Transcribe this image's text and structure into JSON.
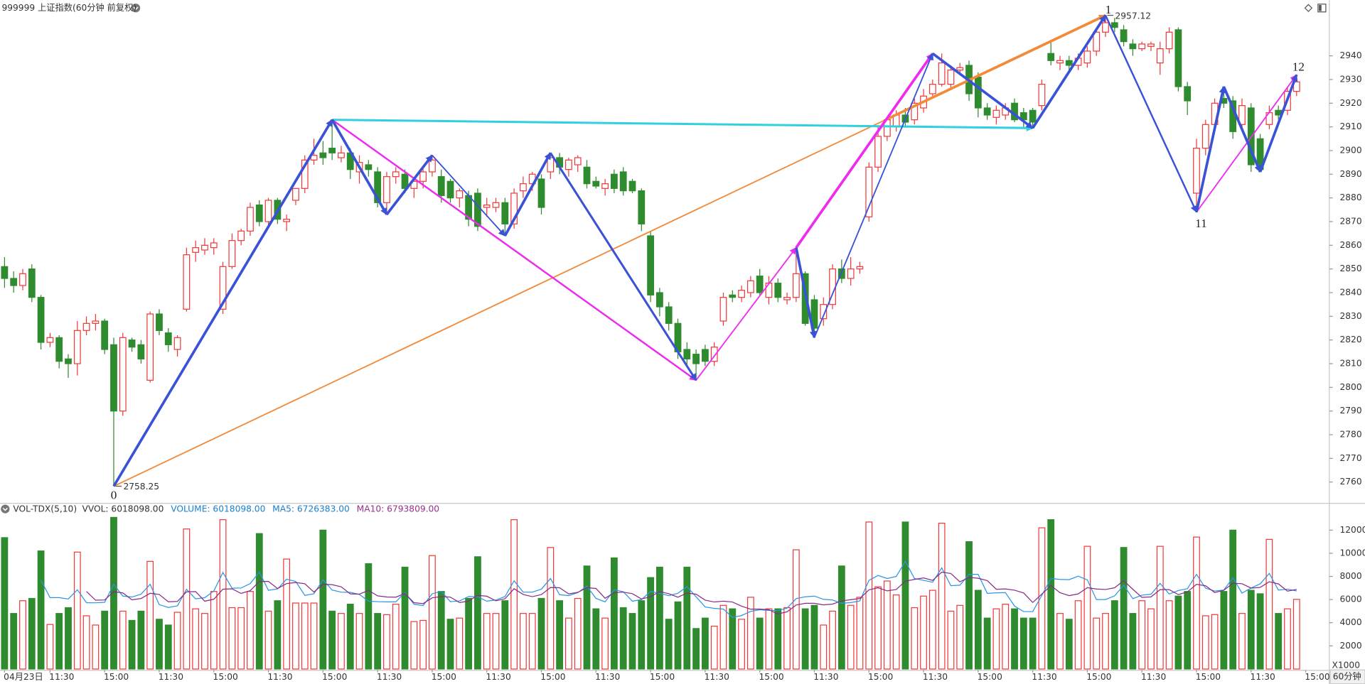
{
  "chart_data": [
    {
      "type": "candlestick",
      "title": "999999 上证指数(60分钟 前复权)",
      "xlim": [
        -0.5,
        145.5
      ],
      "ylim": [
        2751.2,
        2963.5
      ],
      "yticks": [
        2760,
        2770,
        2780,
        2790,
        2800,
        2810,
        2820,
        2830,
        2840,
        2850,
        2860,
        2870,
        2880,
        2890,
        2900,
        2910,
        2920,
        2930,
        2940
      ],
      "xticks": [
        {
          "value": 0,
          "label": "04月23日"
        },
        {
          "value": 5,
          "label": "11:30"
        },
        {
          "value": 11,
          "label": "15:00"
        },
        {
          "value": 17,
          "label": "11:30"
        },
        {
          "value": 23,
          "label": "15:00"
        },
        {
          "value": 29,
          "label": "11:30"
        },
        {
          "value": 35,
          "label": "15:00"
        },
        {
          "value": 41,
          "label": "11:30"
        },
        {
          "value": 47,
          "label": "15:00"
        },
        {
          "value": 53,
          "label": "11:30"
        },
        {
          "value": 59,
          "label": "15:00"
        },
        {
          "value": 65,
          "label": "11:30"
        },
        {
          "value": 71,
          "label": "15:00"
        },
        {
          "value": 77,
          "label": "11:30"
        },
        {
          "value": 83,
          "label": "15:00"
        },
        {
          "value": 89,
          "label": "11:30"
        },
        {
          "value": 95,
          "label": "15:00"
        },
        {
          "value": 101,
          "label": "11:30"
        },
        {
          "value": 107,
          "label": "15:00"
        },
        {
          "value": 113,
          "label": "11:30"
        },
        {
          "value": 119,
          "label": "15:00"
        },
        {
          "value": 125,
          "label": "11:30"
        },
        {
          "value": 131,
          "label": "15:00"
        },
        {
          "value": 137,
          "label": "11:30"
        },
        {
          "value": 143,
          "label": "15:00"
        }
      ],
      "colors": {
        "up": "#f03a3a",
        "down": "#2e8b2e"
      },
      "open": [
        2851,
        2846,
        2843,
        2850,
        2838,
        2819,
        2821,
        2812,
        2810,
        2824,
        2827,
        2828,
        2818,
        2790,
        2820,
        2818,
        2803,
        2831,
        2823,
        2816,
        2833,
        2857,
        2858,
        2859,
        2833,
        2851,
        2862,
        2866,
        2877,
        2870,
        2879,
        2870,
        2879,
        2884,
        2896,
        2899,
        2901,
        2897,
        2899,
        2891,
        2894,
        2891,
        2878,
        2889,
        2890,
        2884,
        2887,
        2891,
        2889,
        2887,
        2880,
        2881,
        2882,
        2876,
        2876,
        2878,
        2869,
        2883,
        2886,
        2888,
        2891,
        2897,
        2892,
        2894,
        2893,
        2887,
        2884,
        2890,
        2891,
        2887,
        2883,
        2864,
        2840,
        2834,
        2827,
        2816,
        2814,
        2816,
        2811,
        2828,
        2839,
        2838,
        2840,
        2847,
        2838,
        2844,
        2837,
        2838,
        2848,
        2837,
        2829,
        2835,
        2850,
        2846,
        2850,
        2872,
        2893,
        2906,
        2910,
        2915,
        2913,
        2918,
        2924,
        2928,
        2928,
        2934,
        2936,
        2931,
        2918,
        2914,
        2915,
        2920,
        2916,
        2917,
        2919,
        2941,
        2937,
        2938,
        2936,
        2937,
        2942,
        2950,
        2954,
        2951,
        2945,
        2943,
        2944,
        2937,
        2943,
        2951,
        2927,
        2882,
        2901,
        2911,
        2922,
        2921,
        2911,
        2918,
        2905,
        2911,
        2917,
        2917,
        2925
      ],
      "high": [
        2855,
        2849,
        2850,
        2852,
        2839,
        2823,
        2822,
        2814,
        2828,
        2830,
        2831,
        2829,
        2821,
        2823,
        2821,
        2820,
        2832,
        2833,
        2825,
        2822,
        2859,
        2862,
        2863,
        2863,
        2853,
        2865,
        2867,
        2878,
        2879,
        2880,
        2880,
        2873,
        2884,
        2898,
        2905,
        2904,
        2913,
        2902,
        2901,
        2898,
        2896,
        2893,
        2891,
        2893,
        2892,
        2888,
        2893,
        2898,
        2892,
        2888,
        2884,
        2883,
        2884,
        2880,
        2880,
        2880,
        2884,
        2889,
        2891,
        2890,
        2899,
        2899,
        2897,
        2898,
        2896,
        2889,
        2888,
        2892,
        2893,
        2888,
        2884,
        2866,
        2842,
        2836,
        2829,
        2819,
        2816,
        2818,
        2819,
        2840,
        2841,
        2843,
        2847,
        2850,
        2847,
        2846,
        2840,
        2859,
        2849,
        2839,
        2838,
        2852,
        2854,
        2855,
        2853,
        2895,
        2910,
        2914,
        2917,
        2918,
        2922,
        2926,
        2930,
        2941,
        2936,
        2937,
        2938,
        2933,
        2920,
        2919,
        2920,
        2922,
        2918,
        2918,
        2930,
        2946,
        2940,
        2940,
        2941,
        2944,
        2951,
        2957.12,
        2956,
        2953,
        2947,
        2946,
        2946,
        2946,
        2952,
        2952,
        2929,
        2905,
        2913,
        2922,
        2927,
        2923,
        2922,
        2920,
        2907,
        2919,
        2919,
        2927,
        2932
      ],
      "low": [
        2842,
        2840,
        2841,
        2836,
        2816,
        2817,
        2808,
        2804,
        2805,
        2822,
        2824,
        2814,
        2758.25,
        2788,
        2815,
        2810,
        2802,
        2822,
        2815,
        2813,
        2832,
        2853,
        2856,
        2856,
        2831,
        2850,
        2860,
        2864,
        2868,
        2868,
        2869,
        2866,
        2877,
        2882,
        2894,
        2894,
        2896,
        2895,
        2888,
        2886,
        2889,
        2876,
        2873,
        2886,
        2882,
        2880,
        2884,
        2889,
        2878,
        2878,
        2876,
        2868,
        2866,
        2872,
        2874,
        2864,
        2867,
        2880,
        2883,
        2873,
        2888,
        2890,
        2889,
        2891,
        2884,
        2884,
        2881,
        2882,
        2881,
        2882,
        2866,
        2836,
        2830,
        2824,
        2812,
        2809,
        2803,
        2809,
        2809,
        2826,
        2836,
        2836,
        2838,
        2839,
        2835,
        2836,
        2835,
        2836,
        2826,
        2821,
        2826,
        2833,
        2844,
        2843,
        2848,
        2870,
        2891,
        2904,
        2908,
        2910,
        2911,
        2916,
        2922,
        2927,
        2926,
        2932,
        2921,
        2914,
        2913,
        2911,
        2913,
        2912,
        2910,
        2909.5,
        2917,
        2936,
        2934,
        2933,
        2934,
        2935,
        2940,
        2948,
        2950,
        2944,
        2940,
        2942,
        2942,
        2932,
        2941,
        2925,
        2915,
        2874,
        2898,
        2909,
        2918,
        2905,
        2909,
        2891,
        2891,
        2909,
        2913,
        2915,
        2923
      ],
      "close": [
        2846,
        2843,
        2848,
        2838,
        2819,
        2821,
        2811,
        2810,
        2824,
        2827,
        2828,
        2816,
        2790,
        2821,
        2817,
        2812,
        2831,
        2824,
        2818,
        2821,
        2856,
        2859,
        2860,
        2861,
        2851,
        2862,
        2866,
        2876,
        2870,
        2879,
        2871,
        2871,
        2884,
        2896,
        2898,
        2897,
        2899,
        2899,
        2892,
        2895,
        2892,
        2878,
        2889,
        2891,
        2884,
        2887,
        2891,
        2896,
        2881,
        2880,
        2883,
        2871,
        2868,
        2877,
        2878,
        2869,
        2882,
        2886,
        2890,
        2876,
        2897,
        2893,
        2896,
        2897,
        2886,
        2885,
        2886,
        2884,
        2883,
        2883,
        2869,
        2839,
        2834,
        2827,
        2815,
        2812,
        2810,
        2811,
        2817,
        2838,
        2838,
        2841,
        2845,
        2840,
        2844,
        2838,
        2838,
        2848,
        2827,
        2825,
        2835,
        2850,
        2846,
        2850,
        2851,
        2893,
        2906,
        2913,
        2915,
        2912,
        2920,
        2923,
        2928,
        2937,
        2934,
        2935,
        2924,
        2918,
        2915,
        2917,
        2918,
        2913,
        2913,
        2912,
        2928,
        2938,
        2938,
        2936,
        2939,
        2942,
        2950,
        2954,
        2952,
        2946,
        2943,
        2945,
        2945,
        2943,
        2950,
        2927,
        2921,
        2901,
        2911,
        2920,
        2920,
        2908,
        2919,
        2894,
        2892,
        2916,
        2915,
        2925,
        2929
      ],
      "trendlines": [
        {
          "color": "#f28a3a",
          "width": 1.5,
          "points": [
            [
              12,
              2758.25
            ],
            [
              121,
              2957.12
            ]
          ]
        },
        {
          "color": "#f28a3a",
          "width": 3,
          "points": [
            [
              97,
              2913.3
            ],
            [
              121,
              2957.12
            ]
          ]
        },
        {
          "color": "#2fd0e0",
          "width": 2.5,
          "points": [
            [
              36,
              2913
            ],
            [
              113,
              2909.5
            ]
          ]
        },
        {
          "color": "#ee2bee",
          "width": 2,
          "points": [
            [
              36,
              2913
            ],
            [
              76,
              2803
            ]
          ]
        },
        {
          "color": "#ee2bee",
          "width": 1.5,
          "points": [
            [
              76,
              2803
            ],
            [
              87,
              2859
            ]
          ]
        },
        {
          "color": "#ee2bee",
          "width": 3,
          "points": [
            [
              87,
              2859
            ],
            [
              102,
              2941
            ]
          ]
        },
        {
          "color": "#ee2bee",
          "width": 1.5,
          "points": [
            [
              131,
              2874
            ],
            [
              142,
              2932
            ]
          ]
        },
        {
          "color": "#3a52d6",
          "width": 3,
          "points": [
            [
              12,
              2758.25
            ],
            [
              36,
              2913
            ]
          ]
        },
        {
          "color": "#3a52d6",
          "width": 3,
          "points": [
            [
              36,
              2913
            ],
            [
              42,
              2873
            ]
          ]
        },
        {
          "color": "#3a52d6",
          "width": 3,
          "points": [
            [
              42,
              2873
            ],
            [
              47,
              2898
            ]
          ]
        },
        {
          "color": "#3a52d6",
          "width": 1.5,
          "points": [
            [
              47,
              2898
            ],
            [
              55,
              2864
            ]
          ]
        },
        {
          "color": "#3a52d6",
          "width": 3,
          "points": [
            [
              55,
              2864
            ],
            [
              60,
              2899
            ]
          ]
        },
        {
          "color": "#3a52d6",
          "width": 2.5,
          "points": [
            [
              60,
              2899
            ],
            [
              76,
              2803
            ]
          ]
        },
        {
          "color": "#3a52d6",
          "width": 3,
          "points": [
            [
              87,
              2859
            ],
            [
              89,
              2821
            ]
          ]
        },
        {
          "color": "#3a52d6",
          "width": 1.5,
          "points": [
            [
              89,
              2821
            ],
            [
              102,
              2941
            ]
          ]
        },
        {
          "color": "#3a52d6",
          "width": 3,
          "points": [
            [
              102,
              2941
            ],
            [
              113,
              2909.5
            ]
          ]
        },
        {
          "color": "#3a52d6",
          "width": 3,
          "points": [
            [
              113,
              2909.5
            ],
            [
              121,
              2957.12
            ]
          ]
        },
        {
          "color": "#3a52d6",
          "width": 2,
          "points": [
            [
              121,
              2957.12
            ],
            [
              131,
              2874
            ]
          ]
        },
        {
          "color": "#3a52d6",
          "width": 3,
          "points": [
            [
              131,
              2874
            ],
            [
              134,
              2927
            ]
          ]
        },
        {
          "color": "#3a52d6",
          "width": 3,
          "points": [
            [
              134,
              2927
            ],
            [
              138,
              2891
            ]
          ]
        },
        {
          "color": "#3a52d6",
          "width": 3,
          "points": [
            [
              138,
              2891
            ],
            [
              142,
              2932
            ]
          ]
        }
      ],
      "annotations": [
        {
          "text": "0",
          "x": 12,
          "y": 2754
        },
        {
          "text": "1",
          "x": 121.3,
          "y": 2959
        },
        {
          "text": "11",
          "x": 131.5,
          "y": 2868.7
        },
        {
          "text": "12",
          "x": 142.2,
          "y": 2934.9
        }
      ],
      "period_label": "60分钟"
    },
    {
      "type": "bar",
      "title": "VOL-TDX(5,10)",
      "legend": [
        {
          "text": "VVOL: 6018098.00",
          "color": "#333333"
        },
        {
          "text": "VOLUME: 6018098.00",
          "color": "#1a7fd0"
        },
        {
          "text": "MA5: 6726383.00",
          "color": "#1a7fd0"
        },
        {
          "text": "MA10: 6793809.00",
          "color": "#9a2f90"
        }
      ],
      "lines": [
        {
          "period": 5,
          "color": "#2a95e6"
        },
        {
          "period": 10,
          "color": "#8a2a86"
        }
      ],
      "ylim": [
        0,
        14200
      ],
      "yticks": [
        2000,
        4000,
        6000,
        8000,
        10000,
        12000
      ],
      "unit_label": "X1000",
      "values": [
        11350,
        4800,
        5900,
        6100,
        10200,
        3850,
        4800,
        5300,
        10100,
        4600,
        3800,
        5000,
        13100,
        5000,
        4200,
        5000,
        9300,
        4300,
        3800,
        4900,
        12100,
        5200,
        4800,
        6700,
        12900,
        5300,
        5300,
        6700,
        11700,
        5000,
        5900,
        9500,
        5700,
        5700,
        5700,
        12000,
        5000,
        4800,
        5600,
        4800,
        9100,
        4800,
        4700,
        5600,
        8800,
        4100,
        4200,
        9800,
        6700,
        4300,
        4400,
        6100,
        9700,
        4800,
        4800,
        5900,
        12900,
        4800,
        4800,
        6100,
        10500,
        5900,
        4400,
        6100,
        8900,
        5200,
        4400,
        9600,
        5300,
        4800,
        5900,
        7900,
        8800,
        4300,
        5800,
        8800,
        3500,
        4400,
        3700,
        5500,
        5200,
        4300,
        6200,
        4400,
        5200,
        5200,
        5300,
        10300,
        5200,
        5500,
        3800,
        5000,
        8900,
        5500,
        6200,
        12700,
        7100,
        7600,
        6400,
        12700,
        5300,
        6300,
        6800,
        12600,
        5000,
        5500,
        11000,
        6800,
        4400,
        5200,
        5600,
        5200,
        4400,
        4400,
        12200,
        12900,
        4800,
        4300,
        5900,
        10600,
        4400,
        4800,
        5900,
        10500,
        4800,
        5900,
        5200,
        10600,
        5900,
        6300,
        6700,
        11400,
        4600,
        4700,
        6700,
        12000,
        4800,
        6800,
        6500,
        11200,
        4800,
        5200,
        6018
      ]
    }
  ]
}
